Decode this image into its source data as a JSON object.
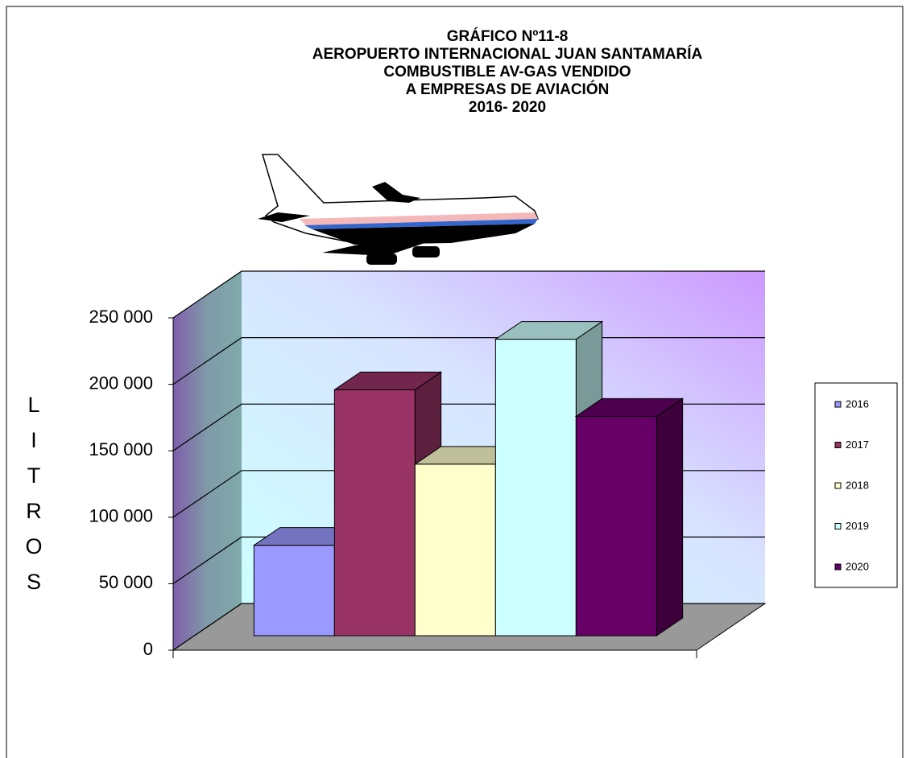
{
  "chart_data": {
    "type": "bar3d",
    "title": [
      "GRÁFICO Nº11-8",
      "AEROPUERTO INTERNACIONAL JUAN SANTAMARÍA",
      "COMBUSTIBLE AV-GAS VENDIDO",
      "A EMPRESAS DE AVIACIÓN",
      "2016- 2020"
    ],
    "y_label": "LITROS",
    "series": [
      {
        "name": "2016",
        "color": "#9999ff",
        "values": [
          68000
        ]
      },
      {
        "name": "2017",
        "color": "#993366",
        "values": [
          185000
        ]
      },
      {
        "name": "2018",
        "color": "#ffffcc",
        "values": [
          129000
        ]
      },
      {
        "name": "2019",
        "color": "#ccffff",
        "values": [
          223000
        ]
      },
      {
        "name": "2020",
        "color": "#660066",
        "values": [
          165000
        ]
      }
    ],
    "ylim": [
      0,
      250000
    ],
    "yticks": [
      0,
      {
        "value": 50000,
        "label": "50 000"
      },
      {
        "value": 100000,
        "label": "100 000"
      },
      {
        "value": 150000,
        "label": "150 000"
      },
      {
        "value": 200000,
        "label": "200 000"
      },
      {
        "value": 250000,
        "label": "250 000"
      }
    ],
    "grid": true,
    "legend": "right"
  }
}
